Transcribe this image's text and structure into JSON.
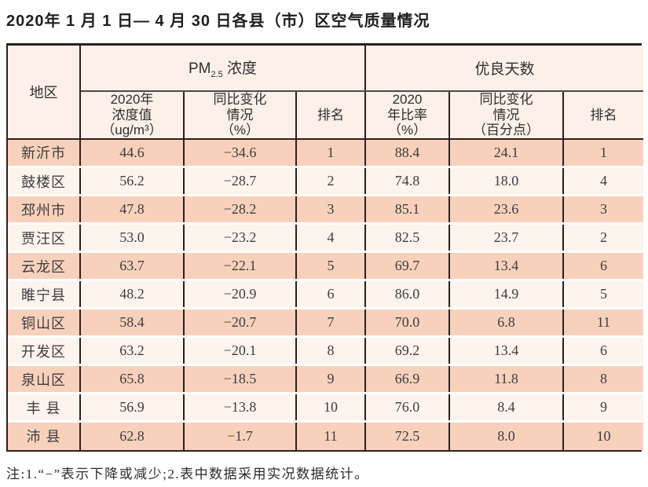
{
  "page": {
    "title": "2020年 1 月 1 日— 4 月 30 日各县（市）区空气质量情况",
    "note": "注:1.“−”表示下降或减少;2.表中数据采用实况数据统计。"
  },
  "colors": {
    "row_odd_bg": "#f8d1bc",
    "row_even_bg": "#fdf4ee",
    "header_bg": "#fcf0e8",
    "grid_border": "#2e1f1e"
  },
  "table": {
    "region_header": "地区",
    "pm_group": {
      "main": "PM",
      "sub": "2.5",
      "rest": " 浓度"
    },
    "good_group": "优良天数",
    "sub_headers": {
      "pm_value": "2020年\n浓度值\n（ug/m³）",
      "pm_change": "同比变化\n情况\n（%）",
      "pm_rank": "排名",
      "good_rate": "2020\n年比率\n（%）",
      "good_change": "同比变化\n情况\n（百分点）",
      "good_rank": "排名"
    },
    "rows": [
      {
        "region": "新沂市",
        "pm_value": "44.6",
        "pm_change": "−34.6",
        "pm_rank": "1",
        "good_rate": "88.4",
        "good_change": "24.1",
        "good_rank": "1"
      },
      {
        "region": "鼓楼区",
        "pm_value": "56.2",
        "pm_change": "−28.7",
        "pm_rank": "2",
        "good_rate": "74.8",
        "good_change": "18.0",
        "good_rank": "4"
      },
      {
        "region": "邳州市",
        "pm_value": "47.8",
        "pm_change": "−28.2",
        "pm_rank": "3",
        "good_rate": "85.1",
        "good_change": "23.6",
        "good_rank": "3"
      },
      {
        "region": "贾汪区",
        "pm_value": "53.0",
        "pm_change": "−23.2",
        "pm_rank": "4",
        "good_rate": "82.5",
        "good_change": "23.7",
        "good_rank": "2"
      },
      {
        "region": "云龙区",
        "pm_value": "63.7",
        "pm_change": "−22.1",
        "pm_rank": "5",
        "good_rate": "69.7",
        "good_change": "13.4",
        "good_rank": "6"
      },
      {
        "region": "睢宁县",
        "pm_value": "48.2",
        "pm_change": "−20.9",
        "pm_rank": "6",
        "good_rate": "86.0",
        "good_change": "14.9",
        "good_rank": "5"
      },
      {
        "region": "铜山区",
        "pm_value": "58.4",
        "pm_change": "−20.7",
        "pm_rank": "7",
        "good_rate": "70.0",
        "good_change": "6.8",
        "good_rank": "11"
      },
      {
        "region": "开发区",
        "pm_value": "63.2",
        "pm_change": "−20.1",
        "pm_rank": "8",
        "good_rate": "69.2",
        "good_change": "13.4",
        "good_rank": "6"
      },
      {
        "region": "泉山区",
        "pm_value": "65.8",
        "pm_change": "−18.5",
        "pm_rank": "9",
        "good_rate": "66.9",
        "good_change": "11.8",
        "good_rank": "8"
      },
      {
        "region": "丰 县",
        "pm_value": "56.9",
        "pm_change": "−13.8",
        "pm_rank": "10",
        "good_rate": "76.0",
        "good_change": "8.4",
        "good_rank": "9"
      },
      {
        "region": "沛 县",
        "pm_value": "62.8",
        "pm_change": "−1.7",
        "pm_rank": "11",
        "good_rate": "72.5",
        "good_change": "8.0",
        "good_rank": "10"
      }
    ]
  },
  "chart_data": {
    "type": "table",
    "title": "2020年1月1日—4月30日各县（市）区空气质量情况",
    "columns": [
      "地区",
      "PM2.5浓度 2020年浓度值（ug/m³）",
      "PM2.5浓度 同比变化情况（%）",
      "PM2.5浓度 排名",
      "优良天数 2020年比率（%）",
      "优良天数 同比变化情况（百分点）",
      "优良天数 排名"
    ],
    "rows": [
      [
        "新沂市",
        44.6,
        -34.6,
        1,
        88.4,
        24.1,
        1
      ],
      [
        "鼓楼区",
        56.2,
        -28.7,
        2,
        74.8,
        18.0,
        4
      ],
      [
        "邳州市",
        47.8,
        -28.2,
        3,
        85.1,
        23.6,
        3
      ],
      [
        "贾汪区",
        53.0,
        -23.2,
        4,
        82.5,
        23.7,
        2
      ],
      [
        "云龙区",
        63.7,
        -22.1,
        5,
        69.7,
        13.4,
        6
      ],
      [
        "睢宁县",
        48.2,
        -20.9,
        6,
        86.0,
        14.9,
        5
      ],
      [
        "铜山区",
        58.4,
        -20.7,
        7,
        70.0,
        6.8,
        11
      ],
      [
        "开发区",
        63.2,
        -20.1,
        8,
        69.2,
        13.4,
        6
      ],
      [
        "泉山区",
        65.8,
        -18.5,
        9,
        66.9,
        11.8,
        8
      ],
      [
        "丰县",
        56.9,
        -13.8,
        10,
        76.0,
        8.4,
        9
      ],
      [
        "沛县",
        62.8,
        -1.7,
        11,
        72.5,
        8.0,
        10
      ]
    ]
  }
}
